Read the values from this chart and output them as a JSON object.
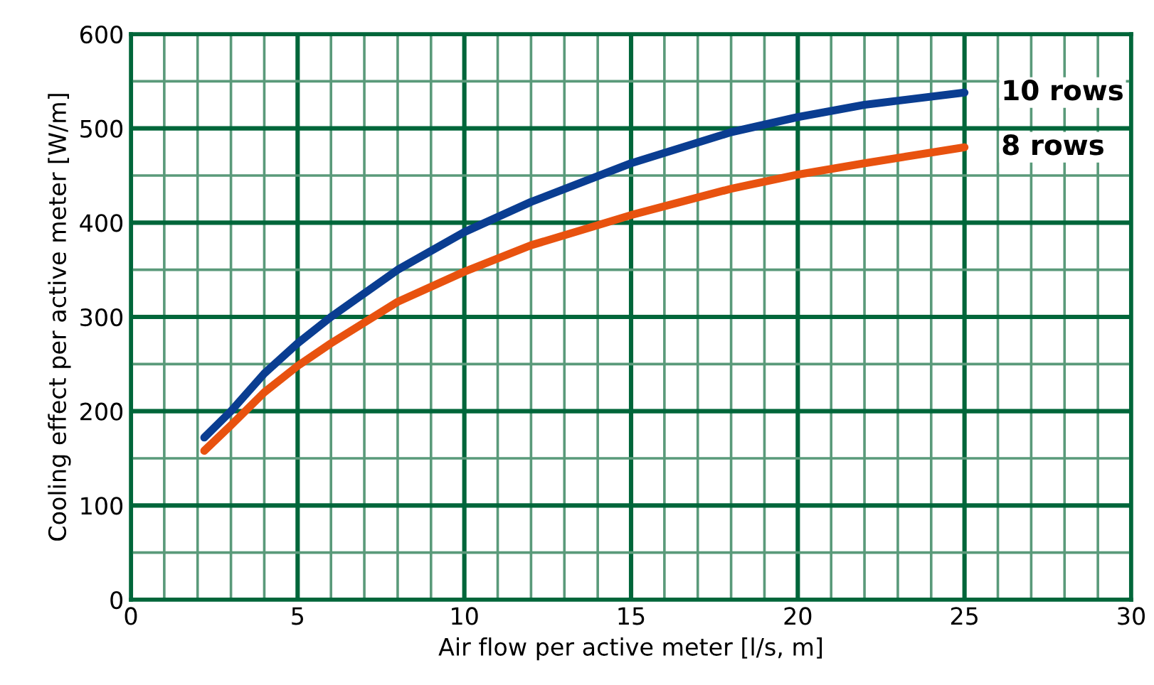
{
  "chart_data": {
    "type": "line",
    "xlabel": "Air flow per active meter [l/s, m]",
    "ylabel": "Cooling effect per active meter [W/m]",
    "xlim": [
      0,
      30
    ],
    "ylim": [
      0,
      600
    ],
    "xticks": [
      0,
      {
        "value": 1,
        "label": null
      },
      {
        "value": 2,
        "label": null
      },
      {
        "value": 3,
        "label": null
      },
      {
        "value": 4,
        "label": null
      },
      5,
      {
        "value": 6,
        "label": null
      },
      {
        "value": 7,
        "label": null
      },
      {
        "value": 8,
        "label": null
      },
      {
        "value": 9,
        "label": null
      },
      10,
      {
        "value": 11,
        "label": null
      },
      {
        "value": 12,
        "label": null
      },
      {
        "value": 13,
        "label": null
      },
      {
        "value": 14,
        "label": null
      },
      15,
      {
        "value": 16,
        "label": null
      },
      {
        "value": 17,
        "label": null
      },
      {
        "value": 18,
        "label": null
      },
      {
        "value": 19,
        "label": null
      },
      20,
      {
        "value": 21,
        "label": null
      },
      {
        "value": 22,
        "label": null
      },
      {
        "value": 23,
        "label": null
      },
      {
        "value": 24,
        "label": null
      },
      25,
      {
        "value": 26,
        "label": null
      },
      {
        "value": 27,
        "label": null
      },
      {
        "value": 28,
        "label": null
      },
      {
        "value": 29,
        "label": null
      },
      30
    ],
    "yticks": [
      0,
      {
        "value": 50,
        "label": null
      },
      100,
      {
        "value": 150,
        "label": null
      },
      200,
      {
        "value": 250,
        "label": null
      },
      300,
      {
        "value": 350,
        "label": null
      },
      400,
      {
        "value": 450,
        "label": null
      },
      500,
      {
        "value": 550,
        "label": null
      },
      600
    ],
    "grid": true,
    "series": [
      {
        "name": "10 rows",
        "color": "#0a3d91",
        "x": [
          2.2,
          3,
          4,
          5,
          6,
          8,
          10,
          12,
          15,
          18,
          20,
          22,
          25
        ],
        "values": [
          172,
          200,
          240,
          272,
          300,
          350,
          390,
          422,
          463,
          496,
          512,
          525,
          538
        ]
      },
      {
        "name": "8 rows",
        "color": "#e8520f",
        "x": [
          2.2,
          3,
          4,
          5,
          6,
          8,
          10,
          12,
          15,
          18,
          20,
          22,
          25
        ],
        "values": [
          158,
          185,
          220,
          248,
          272,
          316,
          348,
          376,
          408,
          436,
          451,
          463,
          480
        ]
      }
    ]
  }
}
